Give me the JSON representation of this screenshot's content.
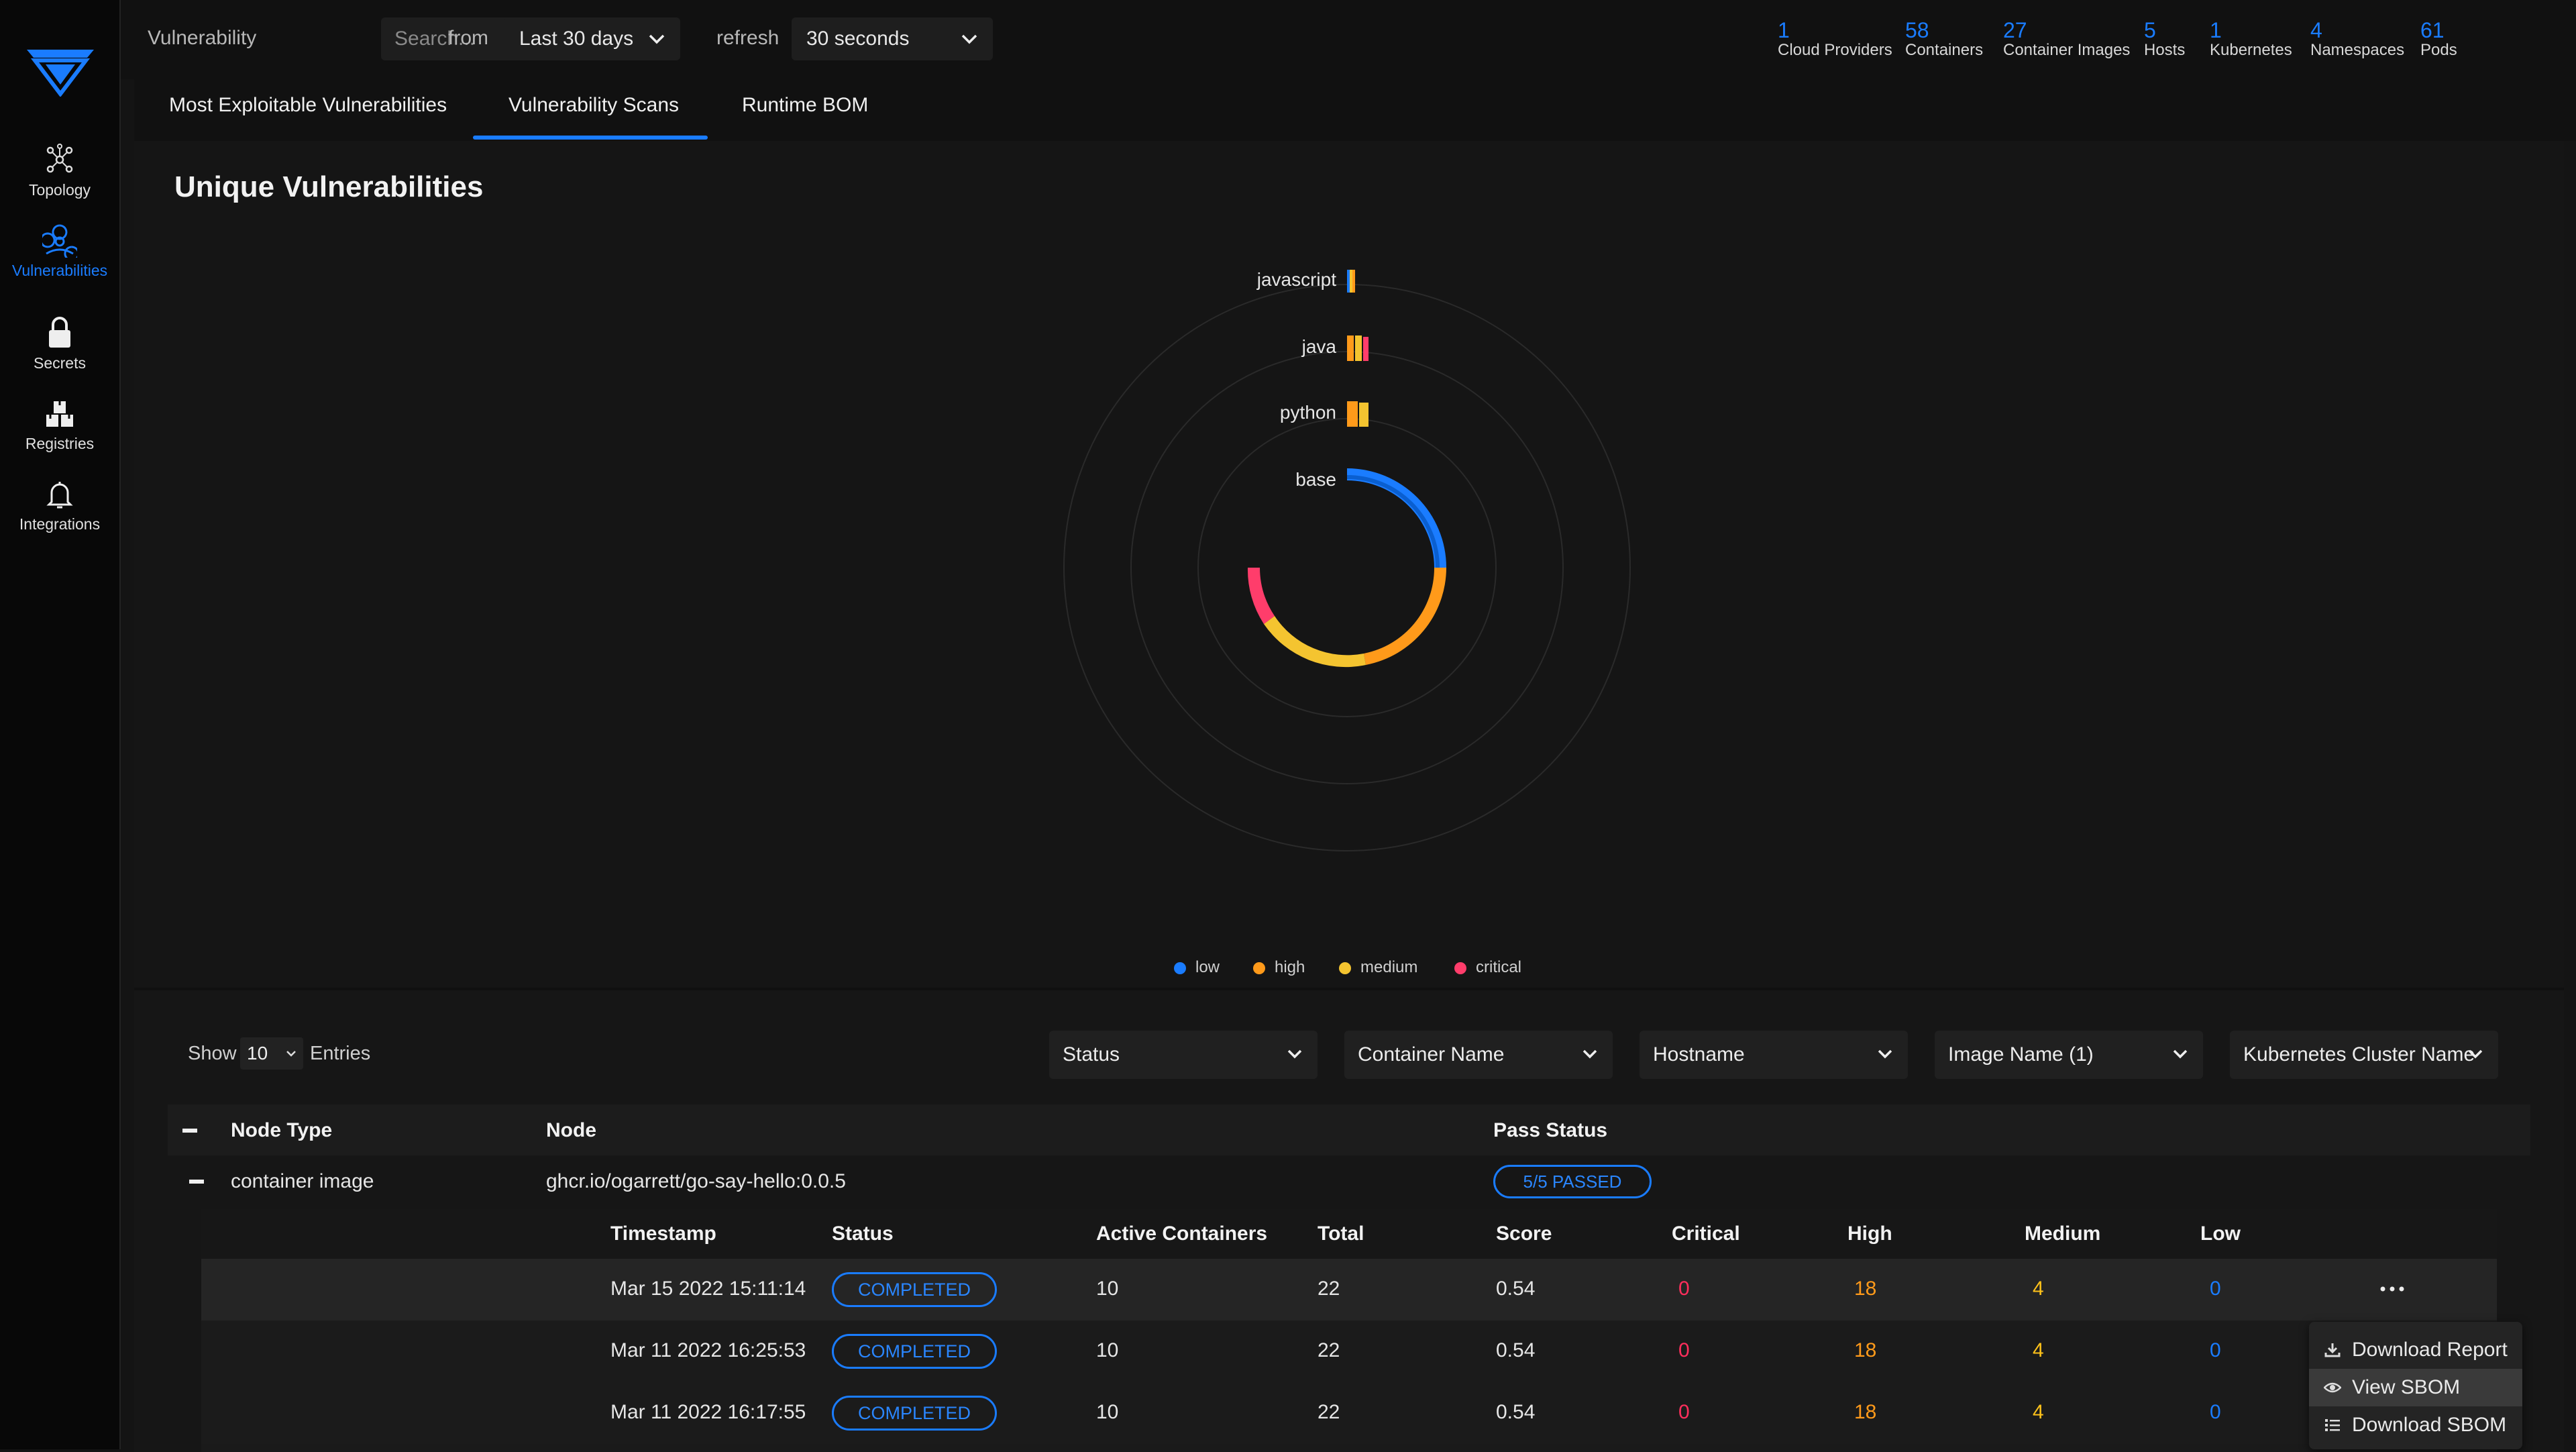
{
  "sidebar": {
    "items": [
      {
        "label": "Topology",
        "icon": "topology-icon",
        "active": false
      },
      {
        "label": "Vulnerabilities",
        "icon": "biohazard-icon",
        "active": true
      },
      {
        "label": "Secrets",
        "icon": "lock-icon",
        "active": false
      },
      {
        "label": "Registries",
        "icon": "registries-icon",
        "active": false
      },
      {
        "label": "Integrations",
        "icon": "bell-icon",
        "active": false
      }
    ]
  },
  "topbar": {
    "section_label": "Vulnerability",
    "search_placeholder": "Search...",
    "from_label": "from",
    "from_value": "Last 30 days",
    "refresh_label": "refresh",
    "refresh_value": "30 seconds",
    "stats": [
      {
        "value": "1",
        "label": "Cloud Providers"
      },
      {
        "value": "58",
        "label": "Containers"
      },
      {
        "value": "27",
        "label": "Container Images"
      },
      {
        "value": "5",
        "label": "Hosts"
      },
      {
        "value": "1",
        "label": "Kubernetes"
      },
      {
        "value": "4",
        "label": "Namespaces"
      },
      {
        "value": "61",
        "label": "Pods"
      }
    ]
  },
  "tabs": [
    {
      "label": "Most Exploitable Vulnerabilities",
      "active": false
    },
    {
      "label": "Vulnerability Scans",
      "active": true
    },
    {
      "label": "Runtime BOM",
      "active": false
    }
  ],
  "chart": {
    "title": "Unique Vulnerabilities",
    "ring_labels": [
      "javascript",
      "java",
      "python",
      "base"
    ],
    "legend": [
      {
        "label": "low",
        "color": "#1a7cff"
      },
      {
        "label": "high",
        "color": "#ff9a1a"
      },
      {
        "label": "medium",
        "color": "#f4c430"
      },
      {
        "label": "critical",
        "color": "#ff3d6b"
      }
    ]
  },
  "table": {
    "show_label": "Show",
    "show_value": "10",
    "entries_label": "Entries",
    "filters": [
      "Status",
      "Container Name",
      "Hostname",
      "Image Name (1)",
      "Kubernetes Cluster Name"
    ],
    "headers": {
      "node_type": "Node Type",
      "node": "Node",
      "pass_status": "Pass Status"
    },
    "row": {
      "node_type": "container image",
      "node": "ghcr.io/ogarrett/go-say-hello:0.0.5",
      "pass_status": "5/5 PASSED"
    },
    "scan_headers": [
      "Timestamp",
      "Status",
      "Active Containers",
      "Total",
      "Score",
      "Critical",
      "High",
      "Medium",
      "Low"
    ],
    "scans": [
      {
        "timestamp": "Mar 15 2022 15:11:14",
        "status": "COMPLETED",
        "active": "10",
        "total": "22",
        "score": "0.54",
        "critical": "0",
        "high": "18",
        "medium": "4",
        "low": "0"
      },
      {
        "timestamp": "Mar 11 2022 16:25:53",
        "status": "COMPLETED",
        "active": "10",
        "total": "22",
        "score": "0.54",
        "critical": "0",
        "high": "18",
        "medium": "4",
        "low": "0"
      },
      {
        "timestamp": "Mar 11 2022 16:17:55",
        "status": "COMPLETED",
        "active": "10",
        "total": "22",
        "score": "0.54",
        "critical": "0",
        "high": "18",
        "medium": "4",
        "low": "0"
      }
    ]
  },
  "context_menu": {
    "items": [
      {
        "label": "Download Report",
        "icon": "download-icon"
      },
      {
        "label": "View SBOM",
        "icon": "eye-icon"
      },
      {
        "label": "Download SBOM",
        "icon": "list-icon"
      }
    ]
  }
}
